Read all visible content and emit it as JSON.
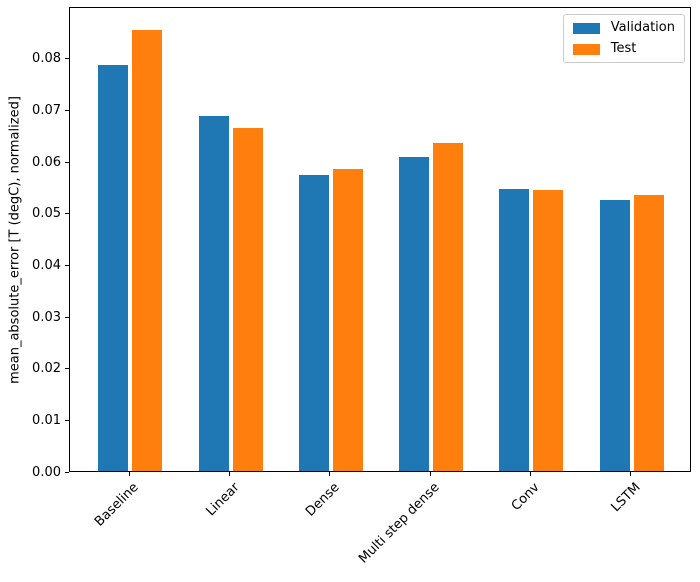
{
  "chart_data": {
    "type": "bar",
    "title": "",
    "xlabel": "",
    "ylabel": "mean_absolute_error [T (degC), normalized]",
    "categories": [
      "Baseline",
      "Linear",
      "Dense",
      "Multi step dense",
      "Conv",
      "LSTM"
    ],
    "series": [
      {
        "name": "Validation",
        "color": "#1f77b4",
        "values": [
          0.0785,
          0.0688,
          0.0572,
          0.0607,
          0.0546,
          0.0525
        ]
      },
      {
        "name": "Test",
        "color": "#ff7f0e",
        "values": [
          0.0853,
          0.0664,
          0.0584,
          0.0634,
          0.0543,
          0.0534
        ]
      }
    ],
    "ylim": [
      0,
      0.09
    ],
    "xlim": [
      -0.602,
      5.602
    ],
    "yticks": [
      0.0,
      0.01,
      0.02,
      0.03,
      0.04,
      0.05,
      0.06,
      0.07,
      0.08
    ],
    "ytick_labels": [
      "0.00",
      "0.01",
      "0.02",
      "0.03",
      "0.04",
      "0.05",
      "0.06",
      "0.07",
      "0.08"
    ],
    "bar_width": 0.3,
    "bar_offset": 0.17,
    "xtick_rotation": 45,
    "grid": false,
    "legend": {
      "position": "upper right",
      "entries": [
        "Validation",
        "Test"
      ]
    }
  }
}
